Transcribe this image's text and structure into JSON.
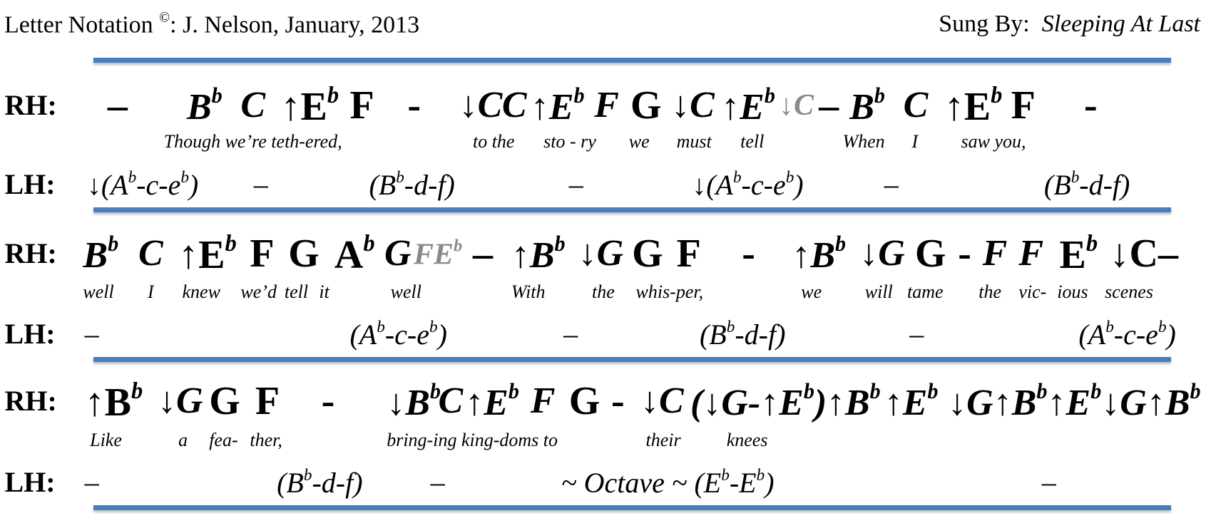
{
  "header": {
    "title": "Letter Notation",
    "copyright": "©",
    "credit": ": J. Nelson, January, 2013",
    "sung_by": "Sung By:",
    "artist": "Sleeping At Last"
  },
  "systems": [
    {
      "rh_label": "RH:",
      "lh_label": "LH:",
      "rh": [
        {
          "parts": [
            "–"
          ],
          "upright": true
        },
        {
          "parts": [
            "B",
            "b"
          ]
        },
        {
          "parts": [
            "C"
          ]
        },
        {
          "parts": [
            "↑E",
            "b"
          ],
          "upright": true
        },
        {
          "parts": [
            "F"
          ],
          "upright": true
        },
        {
          "parts": [
            "-"
          ],
          "upright": true
        },
        {
          "parts": [
            "↓C"
          ]
        },
        {
          "parts": [
            "C"
          ]
        },
        {
          "parts": [
            "↑E",
            "b"
          ]
        },
        {
          "parts": [
            "F"
          ]
        },
        {
          "parts": [
            "G"
          ],
          "upright": true
        },
        {
          "parts": [
            "↓C"
          ]
        },
        {
          "parts": [
            "↑E",
            "b"
          ]
        },
        {
          "parts": [
            "↓C"
          ],
          "gray": true
        },
        {
          "parts": [
            "–"
          ],
          "upright": true
        },
        {
          "parts": [
            "B",
            "b"
          ]
        },
        {
          "parts": [
            "C"
          ]
        },
        {
          "parts": [
            "↑E",
            "b"
          ],
          "upright": true
        },
        {
          "parts": [
            "F"
          ],
          "upright": true
        },
        {
          "parts": [
            "-"
          ],
          "upright": true
        }
      ],
      "lyrics": [
        "Though we’re teth-ered,",
        "to the",
        "sto - ry",
        "we",
        "must",
        "tell",
        "When",
        "I",
        "saw you,"
      ],
      "lh": [
        {
          "parts": [
            "↓(A",
            "b",
            "-c-e",
            "b",
            ")"
          ]
        },
        {
          "parts": [
            "–"
          ],
          "upright": true
        },
        {
          "parts": [
            "(B",
            "b",
            "-d-f)"
          ]
        },
        {
          "parts": [
            "–"
          ],
          "upright": true
        },
        {
          "parts": [
            "↓(A",
            "b",
            "-c-e",
            "b",
            ")"
          ]
        },
        {
          "parts": [
            "–"
          ],
          "upright": true
        },
        {
          "parts": [
            "(B",
            "b",
            "-d-f)"
          ]
        }
      ]
    },
    {
      "rh_label": "RH:",
      "lh_label": "LH:",
      "rh": [
        {
          "parts": [
            "B",
            "b"
          ]
        },
        {
          "parts": [
            "C"
          ]
        },
        {
          "parts": [
            "↑E",
            "b"
          ],
          "upright": true
        },
        {
          "parts": [
            "F"
          ],
          "upright": true
        },
        {
          "parts": [
            "G"
          ],
          "upright": true
        },
        {
          "parts": [
            "A",
            "b"
          ],
          "upright": true
        },
        {
          "parts": [
            "G"
          ]
        },
        {
          "parts": [
            "FE",
            "b"
          ],
          "gray": true
        },
        {
          "parts": [
            "–"
          ],
          "upright": true
        },
        {
          "parts": [
            "↑B",
            "b"
          ]
        },
        {
          "parts": [
            "↓G"
          ]
        },
        {
          "parts": [
            "G"
          ],
          "upright": true
        },
        {
          "parts": [
            "F"
          ],
          "upright": true
        },
        {
          "parts": [
            "-"
          ],
          "upright": true
        },
        {
          "parts": [
            "↑B",
            "b"
          ]
        },
        {
          "parts": [
            "↓G"
          ]
        },
        {
          "parts": [
            "G"
          ],
          "upright": true
        },
        {
          "parts": [
            "-"
          ],
          "upright": true
        },
        {
          "parts": [
            "F"
          ]
        },
        {
          "parts": [
            "F"
          ]
        },
        {
          "parts": [
            "E",
            "b"
          ],
          "upright": true
        },
        {
          "parts": [
            "↓C–"
          ],
          "upright": true
        }
      ],
      "lyrics": [
        "well",
        "I",
        "knew",
        "we’d",
        "tell",
        "it",
        "well",
        "With",
        "the",
        "whis-per,",
        "we",
        "will",
        "tame",
        "the",
        "vic-",
        "ious",
        "scenes"
      ],
      "lh": [
        {
          "parts": [
            "–"
          ],
          "upright": true
        },
        {
          "parts": [
            "(A",
            "b",
            "-c-e",
            "b",
            ")"
          ]
        },
        {
          "parts": [
            "–"
          ],
          "upright": true
        },
        {
          "parts": [
            "(B",
            "b",
            "-d-f)"
          ]
        },
        {
          "parts": [
            "–"
          ],
          "upright": true
        },
        {
          "parts": [
            "(A",
            "b",
            "-c-e",
            "b",
            ")"
          ]
        }
      ]
    },
    {
      "rh_label": "RH:",
      "lh_label": "LH:",
      "rh": [
        {
          "parts": [
            "↑B",
            "b"
          ],
          "upright": true
        },
        {
          "parts": [
            "↓G"
          ]
        },
        {
          "parts": [
            "G"
          ],
          "upright": true
        },
        {
          "parts": [
            "F"
          ],
          "upright": true
        },
        {
          "parts": [
            "-"
          ],
          "upright": true
        },
        {
          "parts": [
            "↓B",
            "b"
          ]
        },
        {
          "parts": [
            "C"
          ]
        },
        {
          "parts": [
            "↑E",
            "b"
          ]
        },
        {
          "parts": [
            "F"
          ]
        },
        {
          "parts": [
            "G"
          ],
          "upright": true
        },
        {
          "parts": [
            "-"
          ],
          "upright": true
        },
        {
          "parts": [
            "↓C"
          ]
        },
        {
          "parts": [
            "(↓G-↑E",
            "b",
            ")"
          ]
        },
        {
          "parts": [
            "↑B",
            "b"
          ]
        },
        {
          "parts": [
            "↑E",
            "b"
          ]
        },
        {
          "parts": [
            "↓G↑B",
            "b",
            "↑E",
            "b",
            "↓G↑B",
            "b"
          ]
        }
      ],
      "lyrics": [
        "Like",
        "a",
        "fea-",
        "ther,",
        "bring-ing king-doms to",
        "their",
        "knees"
      ],
      "lh": [
        {
          "parts": [
            "–"
          ],
          "upright": true
        },
        {
          "parts": [
            "(B",
            "b",
            "-d-f)"
          ]
        },
        {
          "parts": [
            "–"
          ],
          "upright": true
        },
        {
          "parts": [
            "~ Octave ~ (E",
            "b",
            "-E",
            "b",
            ")"
          ]
        },
        {
          "parts": [
            "–"
          ],
          "upright": true
        }
      ]
    }
  ]
}
